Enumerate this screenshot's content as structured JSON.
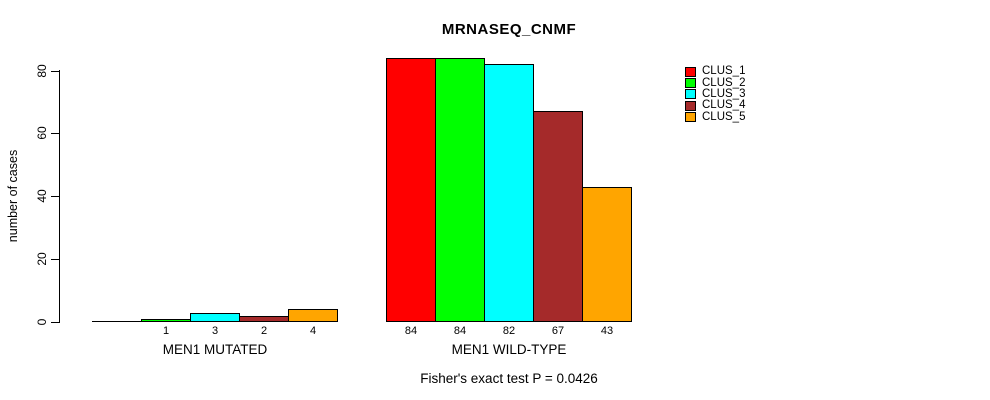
{
  "chart_data": {
    "type": "bar",
    "title": "MRNASEQ_CNMF",
    "xlabel": "",
    "ylabel": "number of cases",
    "ylim": [
      0,
      84
    ],
    "yticks": [
      0,
      20,
      40,
      60,
      80
    ],
    "grid": false,
    "legend_position": "right-inside",
    "categories": [
      "MEN1 MUTATED",
      "MEN1 WILD-TYPE"
    ],
    "series": [
      {
        "name": "CLUS_1",
        "color": "#FF0000",
        "values": [
          0,
          84
        ]
      },
      {
        "name": "CLUS_2",
        "color": "#00FF00",
        "values": [
          1,
          84
        ]
      },
      {
        "name": "CLUS_3",
        "color": "#00FFFF",
        "values": [
          3,
          82
        ]
      },
      {
        "name": "CLUS_4",
        "color": "#A52A2A",
        "values": [
          2,
          67
        ]
      },
      {
        "name": "CLUS_5",
        "color": "#FFA500",
        "values": [
          4,
          43
        ]
      }
    ],
    "groups": [
      {
        "label": "MEN1 MUTATED",
        "values": [
          0,
          1,
          3,
          2,
          4
        ],
        "bar_labels": [
          "",
          "1",
          "3",
          "2",
          "4"
        ]
      },
      {
        "label": "MEN1 WILD-TYPE",
        "values": [
          84,
          84,
          82,
          67,
          43
        ],
        "bar_labels": [
          "84",
          "84",
          "82",
          "67",
          "43"
        ]
      }
    ],
    "annotation": "Fisher's exact test P = 0.0426"
  }
}
